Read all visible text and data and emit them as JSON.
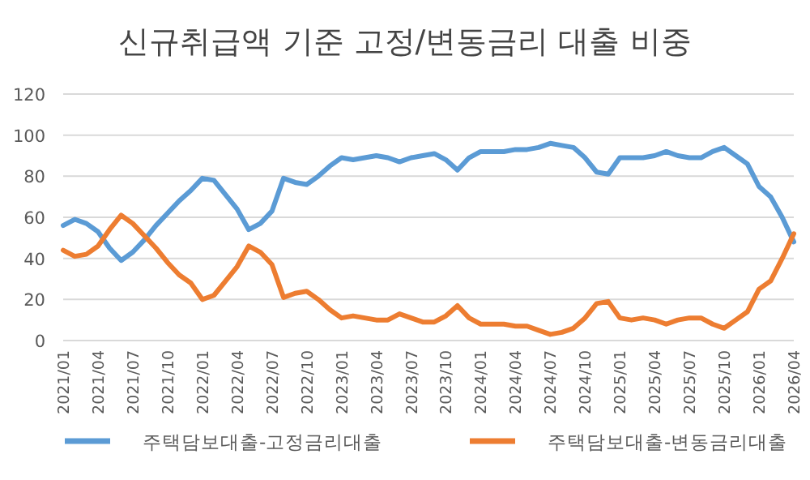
{
  "chart_data": {
    "type": "line",
    "title": "신규취급액 기준 고정/변동금리 대출 비중",
    "categories": [
      "2021/01",
      null,
      null,
      "2021/04",
      null,
      null,
      "2021/07",
      null,
      null,
      "2021/10",
      null,
      null,
      "2022/01",
      null,
      null,
      "2022/04",
      null,
      null,
      "2022/07",
      null,
      null,
      "2022/10",
      null,
      null,
      "2023/01",
      null,
      null,
      "2023/04",
      null,
      null,
      "2023/07",
      null,
      null,
      "2023/10",
      null,
      null,
      "2024/01",
      null,
      null,
      "2024/04",
      null,
      null,
      "2024/07",
      null,
      null,
      "2024/10",
      null,
      null,
      "2025/01",
      null,
      null,
      "2025/04",
      null,
      null,
      "2025/07",
      null,
      null,
      "2025/10",
      null,
      null,
      "2026/01",
      null,
      null,
      "2026/04"
    ],
    "series": [
      {
        "name": "주택담보대출-고정금리대출",
        "color": "#5b9bd5",
        "values": [
          56,
          59,
          57,
          53,
          45,
          39,
          43,
          49,
          56,
          62,
          68,
          73,
          79,
          78,
          71,
          64,
          54,
          57,
          63,
          79,
          77,
          76,
          80,
          85,
          89,
          88,
          89,
          90,
          89,
          87,
          89,
          90,
          91,
          88,
          83,
          89,
          92,
          92,
          92,
          93,
          93,
          94,
          96,
          95,
          94,
          89,
          82,
          81,
          89,
          89,
          89,
          90,
          92,
          90,
          89,
          89,
          92,
          94,
          90,
          86,
          75,
          70,
          60,
          48
        ]
      },
      {
        "name": "주택담보대출-변동금리대출",
        "color": "#ed7d31",
        "values": [
          44,
          41,
          42,
          46,
          54,
          61,
          57,
          51,
          45,
          38,
          32,
          28,
          20,
          22,
          29,
          36,
          46,
          43,
          37,
          21,
          23,
          24,
          20,
          15,
          11,
          12,
          11,
          10,
          10,
          13,
          11,
          9,
          9,
          12,
          17,
          11,
          8,
          8,
          8,
          7,
          7,
          5,
          3,
          4,
          6,
          11,
          18,
          19,
          11,
          10,
          11,
          10,
          8,
          10,
          11,
          11,
          8,
          6,
          10,
          14,
          25,
          29,
          40,
          52
        ]
      }
    ],
    "ylim": [
      0,
      120
    ],
    "yticks": [
      0,
      20,
      40,
      60,
      80,
      100,
      120
    ],
    "grid": "y",
    "legend": "bottom"
  }
}
